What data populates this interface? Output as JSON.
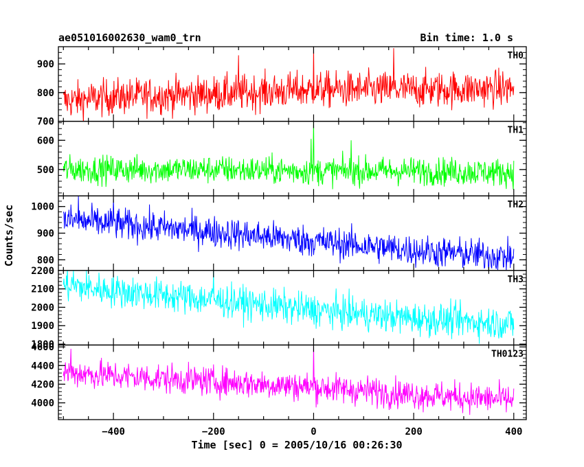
{
  "header": {
    "left": "ae051016002630_wam0_trn",
    "right": "Bin time: 1.0 s"
  },
  "chart_data": {
    "type": "line",
    "title": "ae051016002630_wam0_trn",
    "bin_time": "Bin time: 1.0 s",
    "xlabel": "Time [sec] 0 = 2005/10/16 00:26:30",
    "ylabel": "Counts/sec",
    "xlim": [
      -510,
      425
    ],
    "x_data_range": [
      -500,
      400
    ],
    "xticks": [
      -400,
      -200,
      0,
      200,
      400
    ],
    "xtick_labels": [
      "−400",
      "−200",
      "0",
      "200",
      "400"
    ],
    "grid": false,
    "panels": [
      {
        "name": "TH0",
        "color": "#ff0000",
        "ylim": [
          700,
          960
        ],
        "yticks": [
          700,
          800,
          900
        ],
        "ytick_labels": [
          "700",
          "800",
          "900"
        ],
        "trend": [
          [
            -500,
            770
          ],
          [
            -400,
            785
          ],
          [
            -200,
            795
          ],
          [
            0,
            810
          ],
          [
            200,
            810
          ],
          [
            400,
            815
          ]
        ],
        "noise": 32,
        "spikes": [
          [
            0,
            960
          ],
          [
            160,
            955
          ],
          [
            -150,
            930
          ]
        ]
      },
      {
        "name": "TH1",
        "color": "#00ff00",
        "ylim": [
          410,
          665
        ],
        "yticks": [
          500,
          600
        ],
        "ytick_labels": [
          "500",
          "600"
        ],
        "trend": [
          [
            -500,
            500
          ],
          [
            -200,
            500
          ],
          [
            0,
            495
          ],
          [
            200,
            495
          ],
          [
            400,
            490
          ]
        ],
        "noise": 24,
        "spikes": [
          [
            0,
            665
          ],
          [
            -5,
            605
          ],
          [
            75,
            600
          ]
        ]
      },
      {
        "name": "TH2",
        "color": "#0000ff",
        "ylim": [
          760,
          1040
        ],
        "yticks": [
          800,
          900,
          1000
        ],
        "ytick_labels": [
          "800",
          "900",
          "1000"
        ],
        "trend": [
          [
            -500,
            950
          ],
          [
            -400,
            935
          ],
          [
            -200,
            905
          ],
          [
            0,
            870
          ],
          [
            200,
            835
          ],
          [
            400,
            810
          ]
        ],
        "noise": 30,
        "spikes": [
          [
            -470,
            1040
          ],
          [
            -400,
            1030
          ]
        ]
      },
      {
        "name": "TH3",
        "color": "#00ffff",
        "ylim": [
          1795,
          2200
        ],
        "yticks": [
          1800,
          1900,
          2000,
          2100,
          2200
        ],
        "ytick_labels": [
          "1800",
          "1900",
          "2000",
          "2100",
          "2200"
        ],
        "trend": [
          [
            -500,
            2120
          ],
          [
            -400,
            2090
          ],
          [
            -200,
            2040
          ],
          [
            0,
            1985
          ],
          [
            200,
            1940
          ],
          [
            400,
            1910
          ]
        ],
        "noise": 45,
        "spikes": [
          [
            -480,
            2200
          ],
          [
            -200,
            2200
          ]
        ]
      },
      {
        "name": "TH0123",
        "color": "#ff00ff",
        "ylim": [
          3820,
          4620
        ],
        "yticks": [
          4000,
          4200,
          4400,
          4600
        ],
        "ytick_labels": [
          "4000",
          "4200",
          "4400",
          "4600"
        ],
        "trend": [
          [
            -500,
            4330
          ],
          [
            -400,
            4290
          ],
          [
            -200,
            4230
          ],
          [
            0,
            4170
          ],
          [
            200,
            4090
          ],
          [
            400,
            4030
          ]
        ],
        "noise": 80,
        "spikes": [
          [
            0,
            4620
          ],
          [
            -485,
            4580
          ]
        ]
      }
    ]
  }
}
